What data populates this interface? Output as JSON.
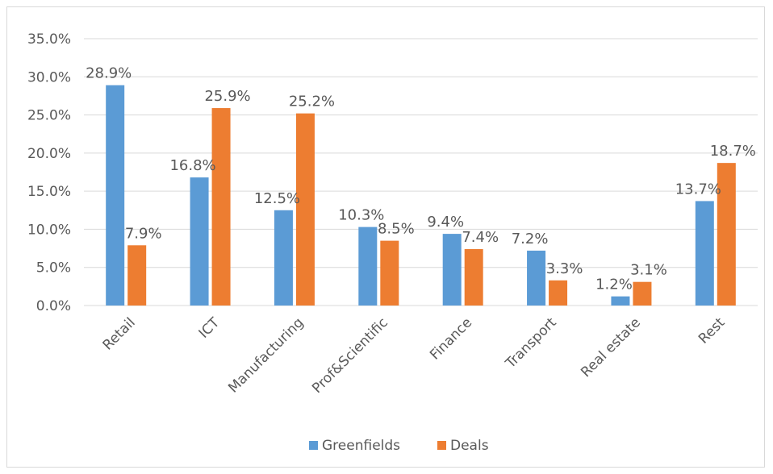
{
  "chart_data": {
    "type": "bar",
    "title": "",
    "xlabel": "",
    "ylabel": "",
    "categories": [
      "Retail",
      "ICT",
      "Manufacturing",
      "Prof&Scientific",
      "Finance",
      "Transport",
      "Real estate",
      "Rest"
    ],
    "series": [
      {
        "name": "Greenfields",
        "color": "#5b9bd5",
        "values": [
          28.9,
          16.8,
          12.5,
          10.3,
          9.4,
          7.2,
          1.2,
          13.7
        ],
        "labels": [
          "28.9%",
          "16.8%",
          "12.5%",
          "10.3%",
          "9.4%",
          "7.2%",
          "1.2%",
          "13.7%"
        ]
      },
      {
        "name": "Deals",
        "color": "#ed7d31",
        "values": [
          7.9,
          25.9,
          25.2,
          8.5,
          7.4,
          3.3,
          3.1,
          18.7
        ],
        "labels": [
          "7.9%",
          "25.9%",
          "25.2%",
          "8.5%",
          "7.4%",
          "3.3%",
          "3.1%",
          "18.7%"
        ]
      }
    ],
    "ylim": [
      0,
      35
    ],
    "yticks": [
      0,
      5,
      10,
      15,
      20,
      25,
      30,
      35
    ],
    "ytick_labels": [
      "0.0%",
      "5.0%",
      "10.0%",
      "15.0%",
      "20.0%",
      "25.0%",
      "30.0%",
      "35.0%"
    ],
    "grid": true,
    "legend": "bottom"
  }
}
